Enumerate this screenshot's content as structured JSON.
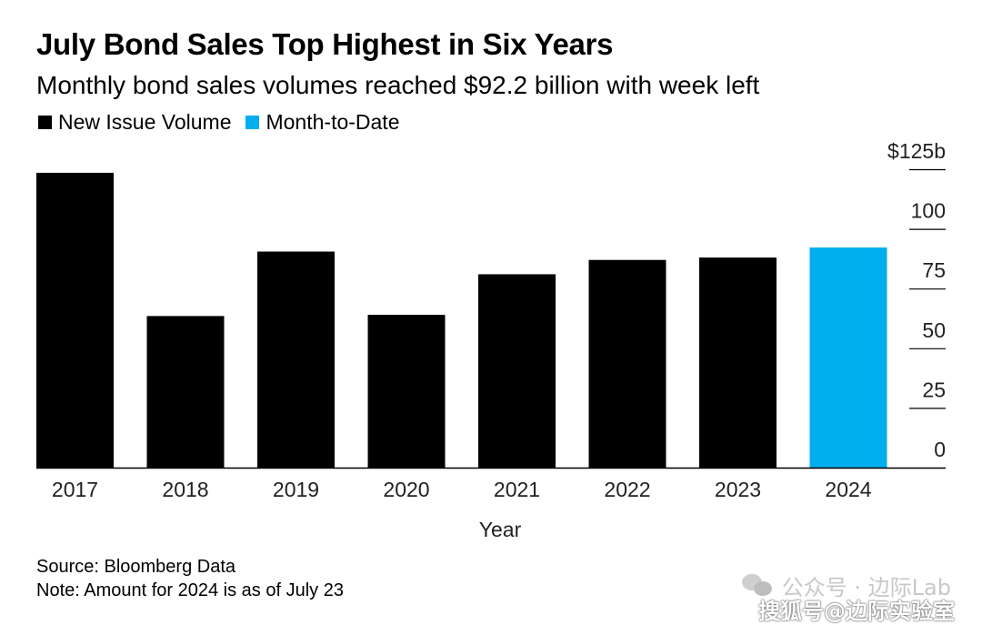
{
  "header": {
    "title": "July Bond Sales Top Highest in Six Years",
    "subtitle": "Monthly bond sales volumes reached $92.2 billion with week left"
  },
  "legend": [
    {
      "label": "New Issue Volume",
      "color": "#000000"
    },
    {
      "label": "Month-to-Date",
      "color": "#00aeef"
    }
  ],
  "chart_data": {
    "type": "bar",
    "title": "July Bond Sales Top Highest in Six Years",
    "subtitle": "Monthly bond sales volumes reached $92.2 billion with week left",
    "xlabel": "Year",
    "ylabel": "",
    "categories": [
      "2017",
      "2018",
      "2019",
      "2020",
      "2021",
      "2022",
      "2023",
      "2024"
    ],
    "series": [
      {
        "name": "New Issue Volume",
        "values": [
          123.5,
          63.5,
          90.5,
          64,
          81,
          87,
          88,
          null
        ],
        "color": "#000000"
      },
      {
        "name": "Month-to-Date",
        "values": [
          null,
          null,
          null,
          null,
          null,
          null,
          null,
          92.2
        ],
        "color": "#00aeef"
      }
    ],
    "ylim": [
      0,
      125
    ],
    "yticks": [
      0,
      25,
      50,
      75,
      100,
      125
    ],
    "ytick_labels": [
      "0",
      "25",
      "50",
      "75",
      "100",
      "$125b"
    ],
    "y_axis_position": "right",
    "grid": false,
    "legend_position": "top-left"
  },
  "footer": {
    "source": "Source: Bloomberg Data",
    "note": "Note: Amount for 2024 is as of July 23"
  },
  "watermark": {
    "line1": "公众号 · 边际Lab",
    "line2": "搜狐号@边际实验室"
  }
}
